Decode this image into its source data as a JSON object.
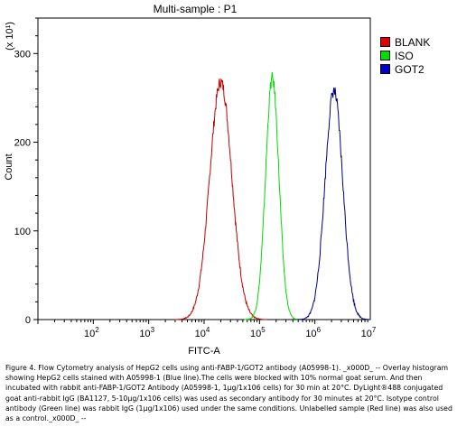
{
  "chart_data": {
    "type": "line",
    "title": "Multi-sample : P1",
    "xlabel": "FITC-A",
    "ylabel": "Count",
    "y_multiplier": "(x 10¹)",
    "x_scale": "log",
    "xlim": [
      10,
      10000000
    ],
    "ylim": [
      0,
      340
    ],
    "x_tick_labels": [
      {
        "base": "10",
        "exp": "2",
        "value": 100
      },
      {
        "base": "10",
        "exp": "3",
        "value": 1000
      },
      {
        "base": "10",
        "exp": "4",
        "value": 10000
      },
      {
        "base": "10",
        "exp": "5",
        "value": 100000
      },
      {
        "base": "10",
        "exp": "6",
        "value": 1000000
      },
      {
        "base": "10",
        "exp": "7",
        "value": 10000000
      }
    ],
    "y_ticks": [
      0,
      100,
      200,
      300
    ],
    "y_tick_labels": [
      "0",
      "100",
      "200",
      "300"
    ],
    "legend_position": "right",
    "series": [
      {
        "name": "BLANK",
        "color": "#c00000",
        "peak_x": 20000,
        "peak_y": 268,
        "width_decades": 0.2
      },
      {
        "name": "ISO",
        "color": "#00dd00",
        "peak_x": 170000,
        "peak_y": 272,
        "width_decades": 0.12
      },
      {
        "name": "GOT2",
        "color": "#000080",
        "peak_x": 2200000,
        "peak_y": 258,
        "width_decades": 0.16
      }
    ]
  },
  "caption": "Figure 4. Flow Cytometry analysis of HepG2 cells using anti-FABP-1/GOT2 antibody (A05998-1). _x000D_ -- Overlay histogram showing HepG2 cells stained with A05998-1 (Blue line).The cells were blocked with 10% normal goat serum. And then incubated with rabbit anti-FABP-1/GOT2 Antibody (A05998-1, 1μg/1x106 cells) for 30 min at 20°C. DyLight®488 conjugated goat anti-rabbit IgG (BA1127, 5-10μg/1x106 cells) was used as secondary antibody for 30 minutes at 20°C. Isotype control antibody (Green line) was rabbit IgG (1μg/1x106) used under the same conditions. Unlabelled sample (Red line) was also used as a control._x000D_ --"
}
